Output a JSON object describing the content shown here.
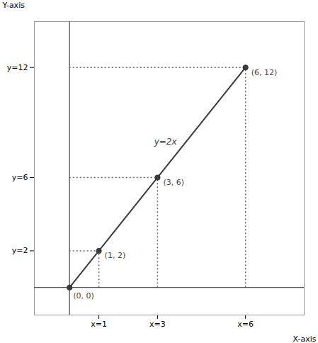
{
  "chart_data": {
    "type": "line",
    "x": [
      0,
      1,
      3,
      6
    ],
    "values": [
      0,
      2,
      6,
      12
    ],
    "value_labels": [
      "(0, 0)",
      "(1, 2)",
      "(3, 6)",
      "(6, 12)"
    ],
    "data_labels": true,
    "color": "#3a3a3a",
    "marker": "circle",
    "xlabel": "X-axis",
    "ylabel": "Y-axis",
    "xlim": [
      -1.2,
      8.0
    ],
    "ylim": [
      -1.5,
      14.5
    ],
    "xticks": [
      {
        "value": 1,
        "label": "x=1"
      },
      {
        "value": 3,
        "label": "x=3"
      },
      {
        "value": 6,
        "label": "x=6"
      }
    ],
    "yticks": [
      {
        "value": 2,
        "label": "y=2"
      },
      {
        "value": 6,
        "label": "y=6"
      },
      {
        "value": 12,
        "label": "y=12"
      }
    ],
    "annotations": [
      {
        "text": "y=2x",
        "x": 3.8,
        "y": 7.8
      }
    ]
  }
}
